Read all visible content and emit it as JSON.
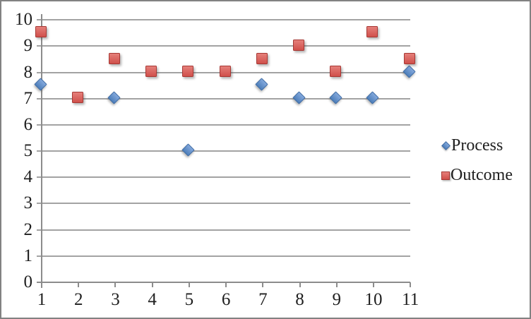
{
  "colors": {
    "background": "#FFFFFF",
    "chart_border": "#828282",
    "gridline": "#A3A3A3",
    "axis": "#8C8C8C",
    "text": "#1F1F1F"
  },
  "chart_data": {
    "type": "scatter",
    "title": "",
    "xlabel": "",
    "ylabel": "",
    "x": [
      1,
      2,
      3,
      4,
      5,
      6,
      7,
      8,
      9,
      10,
      11
    ],
    "xticks": [
      "1",
      "2",
      "3",
      "4",
      "5",
      "6",
      "7",
      "8",
      "9",
      "10",
      "11"
    ],
    "yticks": [
      "0",
      "1",
      "2",
      "3",
      "4",
      "5",
      "6",
      "7",
      "8",
      "9",
      "10"
    ],
    "ylim": [
      0,
      10
    ],
    "grid": true,
    "legend_position": "right",
    "series": [
      {
        "name": "Process",
        "marker": "diamond",
        "fill_top": "#83A8DC",
        "fill_bottom": "#4E7FBA",
        "border_color": "#3D6BA5",
        "values": [
          7.5,
          null,
          7,
          null,
          5,
          null,
          7.5,
          7,
          7,
          7,
          8
        ]
      },
      {
        "name": "Outcome",
        "marker": "square",
        "fill_top": "#E57F7A",
        "fill_bottom": "#D0504B",
        "border_color": "#A63733",
        "values": [
          9.5,
          7,
          8.5,
          8,
          8,
          8,
          8.5,
          9,
          8,
          9.5,
          8.5
        ]
      }
    ]
  }
}
